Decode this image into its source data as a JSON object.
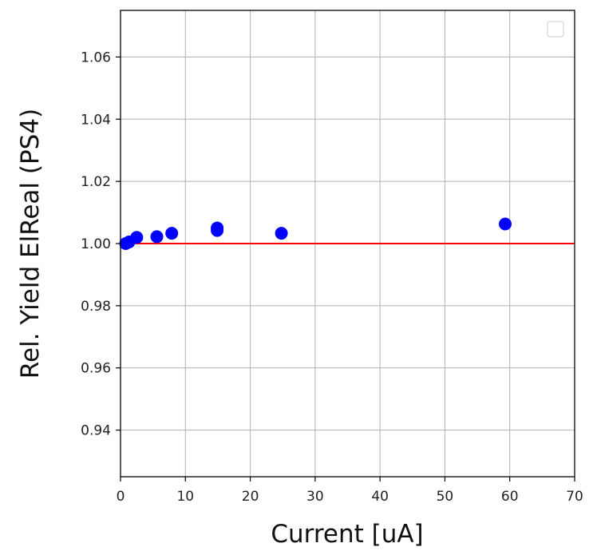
{
  "chart_data": {
    "type": "scatter",
    "title": "",
    "xlabel": "Current [uA]",
    "ylabel": "Rel. Yield ElReal (PS4)",
    "xlim": [
      0,
      70
    ],
    "ylim": [
      0.925,
      1.075
    ],
    "xticks": [
      0,
      10,
      20,
      30,
      40,
      50,
      60,
      70
    ],
    "yticks": [
      0.94,
      0.96,
      0.98,
      1.0,
      1.02,
      1.04,
      1.06
    ],
    "ytick_labels": [
      "0.94",
      "0.96",
      "0.98",
      "1.00",
      "1.02",
      "1.04",
      "1.06"
    ],
    "grid": true,
    "legend": "top-right (empty)",
    "reference_line": {
      "y": 1.0,
      "color": "#ff0000"
    },
    "series": [
      {
        "color": "#0000ff",
        "points": [
          {
            "x": 0.8,
            "y": 1.0,
            "yerr": 0.0018,
            "xerr": 0.8
          },
          {
            "x": 1.3,
            "y": 1.0005
          },
          {
            "x": 2.5,
            "y": 1.002
          },
          {
            "x": 5.6,
            "y": 1.0022
          },
          {
            "x": 7.9,
            "y": 1.0033
          },
          {
            "x": 14.9,
            "y": 1.0042
          },
          {
            "x": 14.9,
            "y": 1.005
          },
          {
            "x": 24.8,
            "y": 1.0033
          },
          {
            "x": 59.3,
            "y": 1.0063
          }
        ]
      }
    ]
  }
}
